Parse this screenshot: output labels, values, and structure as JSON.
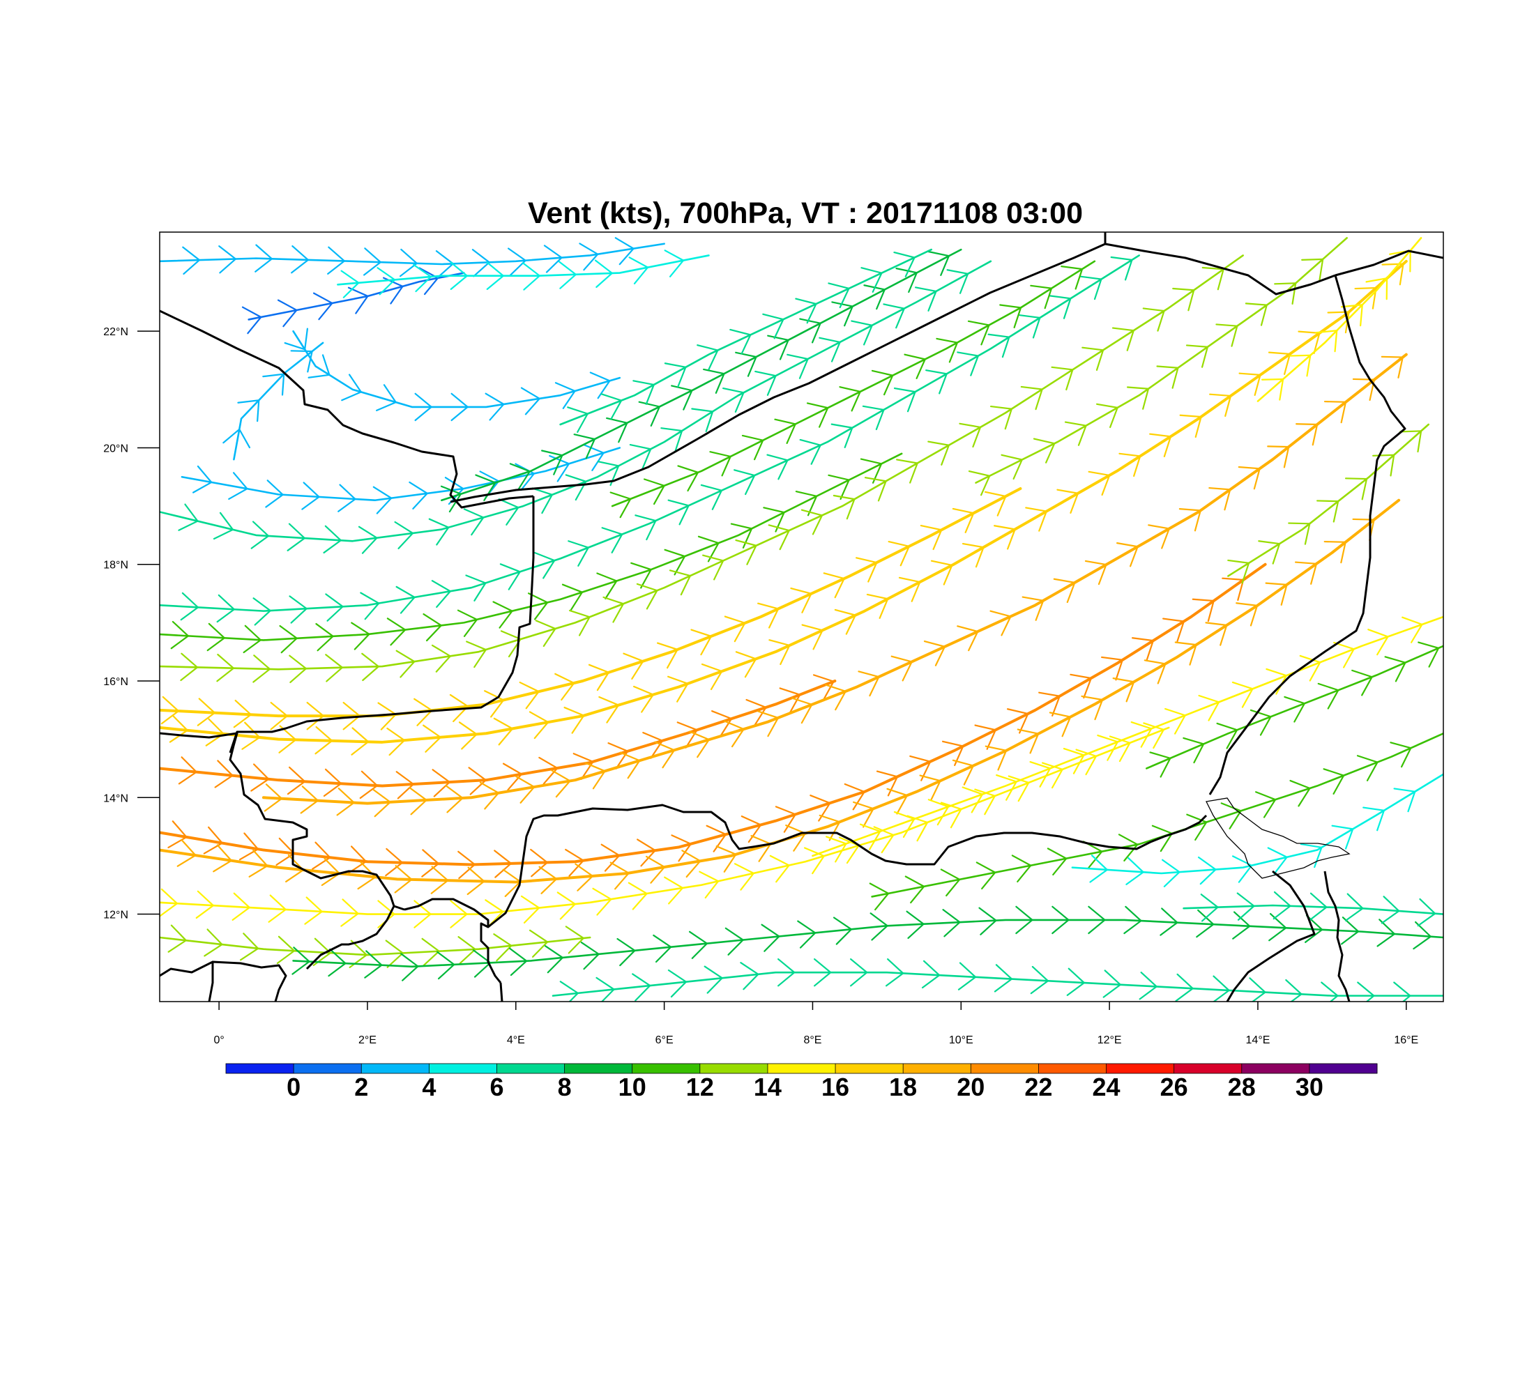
{
  "title": "Vent (kts), 700hPa, VT : 20171108  03:00",
  "map": {
    "lon_range": [
      -0.8,
      16.5
    ],
    "lat_range": [
      10.5,
      23.7
    ],
    "x_ticks": [
      "0°",
      "2°E",
      "4°E",
      "6°E",
      "8°E",
      "10°E",
      "12°E",
      "14°E",
      "16°E"
    ],
    "y_ticks": [
      "12°N",
      "14°N",
      "16°N",
      "18°N",
      "20°N",
      "22°N"
    ]
  },
  "colorbar": {
    "labels": [
      "0",
      "2",
      "4",
      "6",
      "8",
      "10",
      "12",
      "14",
      "16",
      "18",
      "20",
      "22",
      "24",
      "26",
      "28",
      "30"
    ],
    "colors": [
      "#0a22f0",
      "#0b6ff0",
      "#02b8f8",
      "#00f0e0",
      "#00d890",
      "#00b83a",
      "#38c000",
      "#98dc00",
      "#fff200",
      "#ffd000",
      "#ffb000",
      "#ff8c00",
      "#ff5a00",
      "#ff1a00",
      "#d8002a",
      "#8c0060",
      "#500090"
    ]
  },
  "wind_streams": [
    {
      "speed_kts": 2,
      "points": [
        [
          0.4,
          22.2
        ],
        [
          1.2,
          22.4
        ],
        [
          2.0,
          22.6
        ],
        [
          2.7,
          22.85
        ],
        [
          3.3,
          23.0
        ]
      ]
    },
    {
      "speed_kts": 4,
      "points": [
        [
          1.0,
          22.0
        ],
        [
          1.3,
          21.4
        ],
        [
          1.8,
          21.0
        ],
        [
          2.6,
          20.7
        ],
        [
          3.6,
          20.7
        ],
        [
          4.6,
          20.9
        ],
        [
          5.4,
          21.2
        ]
      ]
    },
    {
      "speed_kts": 5,
      "points": [
        [
          0.2,
          19.8
        ],
        [
          0.3,
          20.5
        ],
        [
          0.9,
          21.3
        ],
        [
          1.4,
          21.8
        ]
      ]
    },
    {
      "speed_kts": 5,
      "points": [
        [
          -0.8,
          23.2
        ],
        [
          0.5,
          23.25
        ],
        [
          1.8,
          23.2
        ],
        [
          3.0,
          23.15
        ],
        [
          4.0,
          23.2
        ],
        [
          5.0,
          23.3
        ],
        [
          6.0,
          23.5
        ]
      ]
    },
    {
      "speed_kts": 6,
      "points": [
        [
          1.6,
          22.8
        ],
        [
          3.0,
          22.95
        ],
        [
          4.3,
          22.95
        ],
        [
          5.4,
          23.0
        ],
        [
          6.6,
          23.3
        ]
      ]
    },
    {
      "speed_kts": 5,
      "points": [
        [
          -0.5,
          19.5
        ],
        [
          0.8,
          19.2
        ],
        [
          2.1,
          19.1
        ],
        [
          3.3,
          19.3
        ],
        [
          4.4,
          19.6
        ],
        [
          5.4,
          20.0
        ]
      ]
    },
    {
      "speed_kts": 8,
      "points": [
        [
          -0.8,
          18.9
        ],
        [
          0.5,
          18.5
        ],
        [
          1.8,
          18.4
        ],
        [
          3.0,
          18.6
        ],
        [
          4.1,
          19.0
        ],
        [
          5.1,
          19.5
        ],
        [
          6.0,
          20.1
        ],
        [
          7.0,
          20.9
        ],
        [
          8.2,
          21.7
        ],
        [
          9.4,
          22.5
        ],
        [
          10.4,
          23.2
        ]
      ]
    },
    {
      "speed_kts": 10,
      "points": [
        [
          3.0,
          19.1
        ],
        [
          4.2,
          19.6
        ],
        [
          5.3,
          20.3
        ],
        [
          6.4,
          21.0
        ],
        [
          7.6,
          21.8
        ],
        [
          8.8,
          22.6
        ],
        [
          10.0,
          23.4
        ]
      ]
    },
    {
      "speed_kts": 8,
      "points": [
        [
          4.6,
          20.4
        ],
        [
          5.6,
          20.9
        ],
        [
          6.6,
          21.6
        ],
        [
          7.6,
          22.2
        ],
        [
          8.6,
          22.8
        ],
        [
          9.6,
          23.4
        ]
      ]
    },
    {
      "speed_kts": 9,
      "points": [
        [
          -0.8,
          17.3
        ],
        [
          0.6,
          17.2
        ],
        [
          2.0,
          17.3
        ],
        [
          3.4,
          17.6
        ],
        [
          4.6,
          18.1
        ],
        [
          5.8,
          18.7
        ],
        [
          7.0,
          19.4
        ],
        [
          8.2,
          20.1
        ],
        [
          9.3,
          20.9
        ],
        [
          10.4,
          21.7
        ],
        [
          11.4,
          22.5
        ],
        [
          12.4,
          23.3
        ]
      ]
    },
    {
      "speed_kts": 13,
      "points": [
        [
          5.3,
          19.0
        ],
        [
          6.5,
          19.6
        ],
        [
          7.6,
          20.3
        ],
        [
          8.7,
          21.0
        ],
        [
          9.8,
          21.7
        ],
        [
          10.8,
          22.4
        ],
        [
          11.8,
          23.2
        ]
      ]
    },
    {
      "speed_kts": 12,
      "points": [
        [
          -0.8,
          16.8
        ],
        [
          0.6,
          16.7
        ],
        [
          2.0,
          16.8
        ],
        [
          3.3,
          17.0
        ],
        [
          4.6,
          17.4
        ],
        [
          5.8,
          17.9
        ],
        [
          7.0,
          18.5
        ],
        [
          8.1,
          19.2
        ],
        [
          9.2,
          19.9
        ]
      ]
    },
    {
      "speed_kts": 15,
      "points": [
        [
          -0.8,
          16.25
        ],
        [
          0.8,
          16.2
        ],
        [
          2.2,
          16.25
        ],
        [
          3.5,
          16.5
        ],
        [
          4.8,
          17.0
        ],
        [
          6.0,
          17.6
        ],
        [
          7.2,
          18.3
        ],
        [
          8.4,
          19.0
        ],
        [
          9.5,
          19.8
        ],
        [
          10.6,
          20.6
        ],
        [
          11.7,
          21.5
        ],
        [
          12.8,
          22.4
        ],
        [
          13.8,
          23.3
        ]
      ]
    },
    {
      "speed_kts": 19,
      "points": [
        [
          -0.8,
          15.5
        ],
        [
          0.8,
          15.4
        ],
        [
          2.2,
          15.4
        ],
        [
          3.6,
          15.6
        ],
        [
          4.9,
          16.0
        ],
        [
          6.1,
          16.5
        ],
        [
          7.3,
          17.1
        ],
        [
          8.5,
          17.8
        ],
        [
          9.6,
          18.5
        ],
        [
          10.8,
          19.3
        ]
      ]
    },
    {
      "speed_kts": 18,
      "points": [
        [
          -0.8,
          15.2
        ],
        [
          0.8,
          15.0
        ],
        [
          2.2,
          14.95
        ],
        [
          3.6,
          15.1
        ],
        [
          4.9,
          15.4
        ],
        [
          6.2,
          15.9
        ],
        [
          7.5,
          16.5
        ],
        [
          8.7,
          17.2
        ],
        [
          9.9,
          18.0
        ],
        [
          11.0,
          18.8
        ],
        [
          12.1,
          19.6
        ],
        [
          13.2,
          20.5
        ],
        [
          14.2,
          21.4
        ],
        [
          15.2,
          22.3
        ],
        [
          16.0,
          23.2
        ]
      ]
    },
    {
      "speed_kts": 22,
      "points": [
        [
          -0.8,
          14.5
        ],
        [
          0.8,
          14.3
        ],
        [
          2.2,
          14.2
        ],
        [
          3.6,
          14.3
        ],
        [
          5.0,
          14.6
        ],
        [
          6.3,
          15.1
        ],
        [
          7.5,
          15.6
        ],
        [
          8.3,
          16.0
        ]
      ]
    },
    {
      "speed_kts": 20,
      "points": [
        [
          0.6,
          14.0
        ],
        [
          2.0,
          13.9
        ],
        [
          3.4,
          14.0
        ],
        [
          4.8,
          14.3
        ],
        [
          6.1,
          14.8
        ],
        [
          7.4,
          15.3
        ],
        [
          8.6,
          15.9
        ],
        [
          9.8,
          16.6
        ],
        [
          11.0,
          17.3
        ],
        [
          12.1,
          18.1
        ],
        [
          13.2,
          18.9
        ],
        [
          14.2,
          19.8
        ],
        [
          15.1,
          20.7
        ],
        [
          16.0,
          21.6
        ]
      ]
    },
    {
      "speed_kts": 23,
      "points": [
        [
          -0.8,
          13.4
        ],
        [
          0.6,
          13.1
        ],
        [
          2.0,
          12.9
        ],
        [
          3.4,
          12.85
        ],
        [
          4.8,
          12.9
        ],
        [
          6.2,
          13.15
        ],
        [
          7.5,
          13.6
        ],
        [
          8.7,
          14.1
        ],
        [
          9.9,
          14.8
        ],
        [
          11.0,
          15.5
        ],
        [
          12.1,
          16.3
        ],
        [
          13.1,
          17.1
        ],
        [
          14.1,
          18.0
        ]
      ]
    },
    {
      "speed_kts": 21,
      "points": [
        [
          -0.8,
          13.1
        ],
        [
          0.8,
          12.8
        ],
        [
          2.4,
          12.6
        ],
        [
          4.0,
          12.55
        ],
        [
          5.5,
          12.7
        ],
        [
          6.9,
          13.0
        ],
        [
          8.2,
          13.5
        ],
        [
          9.4,
          14.1
        ],
        [
          10.6,
          14.8
        ],
        [
          11.8,
          15.6
        ],
        [
          12.9,
          16.4
        ],
        [
          14.0,
          17.3
        ],
        [
          15.0,
          18.2
        ],
        [
          15.9,
          19.1
        ]
      ]
    },
    {
      "speed_kts": 16,
      "points": [
        [
          -0.8,
          12.2
        ],
        [
          0.6,
          12.1
        ],
        [
          2.0,
          12.0
        ],
        [
          3.5,
          12.0
        ],
        [
          5.0,
          12.2
        ],
        [
          6.5,
          12.5
        ],
        [
          7.9,
          12.9
        ],
        [
          9.2,
          13.4
        ],
        [
          10.4,
          14.0
        ],
        [
          11.6,
          14.6
        ],
        [
          12.8,
          15.2
        ]
      ]
    },
    {
      "speed_kts": 15,
      "points": [
        [
          -0.8,
          11.6
        ],
        [
          0.6,
          11.4
        ],
        [
          2.0,
          11.3
        ],
        [
          3.5,
          11.4
        ],
        [
          5.0,
          11.6
        ]
      ]
    },
    {
      "speed_kts": 16,
      "points": [
        [
          8.0,
          13.0
        ],
        [
          9.3,
          13.6
        ],
        [
          10.6,
          14.2
        ],
        [
          11.8,
          14.8
        ],
        [
          13.0,
          15.4
        ],
        [
          14.2,
          16.0
        ],
        [
          15.4,
          16.6
        ],
        [
          16.5,
          17.1
        ]
      ]
    },
    {
      "speed_kts": 13,
      "points": [
        [
          8.8,
          12.3
        ],
        [
          10.0,
          12.6
        ],
        [
          11.2,
          12.9
        ],
        [
          12.4,
          13.2
        ],
        [
          13.6,
          13.7
        ],
        [
          14.8,
          14.2
        ],
        [
          15.8,
          14.7
        ],
        [
          16.5,
          15.1
        ]
      ]
    },
    {
      "speed_kts": 12,
      "points": [
        [
          12.5,
          14.5
        ],
        [
          13.6,
          15.1
        ],
        [
          14.6,
          15.6
        ],
        [
          15.6,
          16.1
        ],
        [
          16.5,
          16.6
        ]
      ]
    },
    {
      "speed_kts": 6,
      "points": [
        [
          11.5,
          12.8
        ],
        [
          12.7,
          12.7
        ],
        [
          13.8,
          12.8
        ],
        [
          14.8,
          13.1
        ],
        [
          15.6,
          13.7
        ],
        [
          16.5,
          14.4
        ]
      ]
    },
    {
      "speed_kts": 10,
      "points": [
        [
          1.0,
          11.2
        ],
        [
          2.6,
          11.1
        ],
        [
          4.2,
          11.2
        ],
        [
          5.8,
          11.4
        ],
        [
          7.4,
          11.6
        ],
        [
          9.0,
          11.8
        ],
        [
          10.6,
          11.9
        ],
        [
          12.2,
          11.9
        ],
        [
          13.8,
          11.8
        ],
        [
          15.4,
          11.7
        ],
        [
          16.5,
          11.6
        ]
      ]
    },
    {
      "speed_kts": 9,
      "points": [
        [
          4.5,
          10.6
        ],
        [
          6.0,
          10.8
        ],
        [
          7.5,
          11.0
        ],
        [
          9.0,
          11.0
        ],
        [
          10.5,
          10.9
        ],
        [
          12.0,
          10.8
        ],
        [
          13.5,
          10.7
        ],
        [
          15.0,
          10.6
        ],
        [
          16.5,
          10.6
        ]
      ]
    },
    {
      "speed_kts": 8,
      "points": [
        [
          13.0,
          12.1
        ],
        [
          14.2,
          12.15
        ],
        [
          15.4,
          12.1
        ],
        [
          16.5,
          12.0
        ]
      ]
    },
    {
      "speed_kts": 15,
      "points": [
        [
          10.2,
          19.4
        ],
        [
          11.3,
          20.1
        ],
        [
          12.4,
          20.9
        ],
        [
          13.4,
          21.8
        ],
        [
          14.4,
          22.7
        ],
        [
          15.2,
          23.6
        ]
      ]
    },
    {
      "speed_kts": 14,
      "points": [
        [
          13.6,
          17.8
        ],
        [
          14.6,
          18.6
        ],
        [
          15.5,
          19.5
        ],
        [
          16.3,
          20.4
        ]
      ]
    },
    {
      "speed_kts": 17,
      "points": [
        [
          14.0,
          20.8
        ],
        [
          14.9,
          21.8
        ],
        [
          15.6,
          22.7
        ],
        [
          16.2,
          23.6
        ]
      ]
    }
  ]
}
